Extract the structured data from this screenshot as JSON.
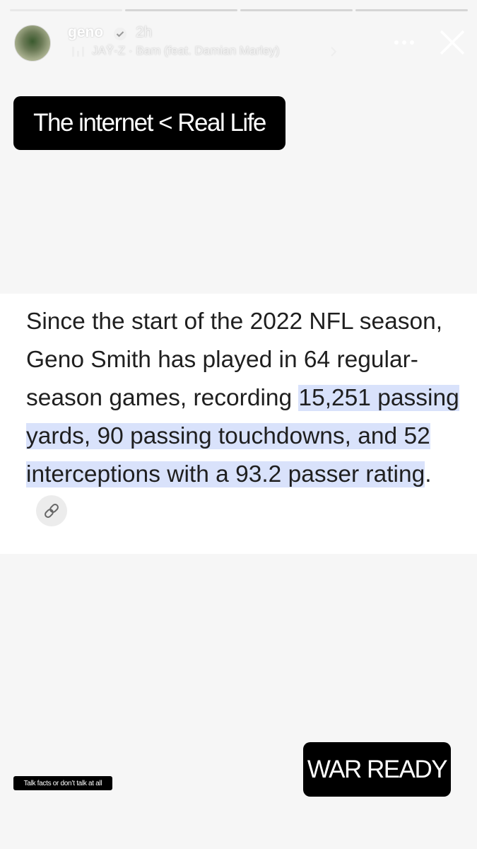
{
  "header": {
    "username": "geno",
    "time": "2h",
    "music": "JAŸ-Z · Bam (feat. Damian Marley)"
  },
  "stickers": {
    "top": "The internet < Real Life",
    "bottom_right": "WAR READY",
    "bottom_left": "Talk facts or don’t talk at all"
  },
  "post": {
    "parts": [
      {
        "text": "Since the start of the 2022 NFL season, Geno Smith has played in 64 regular-season games, recording ",
        "highlight": false
      },
      {
        "text": "15,251 passing yards, 90 passing touchdowns, and 52 interceptions with a 93.2 passer rating",
        "highlight": true
      },
      {
        "text": ".",
        "highlight": false
      }
    ]
  }
}
